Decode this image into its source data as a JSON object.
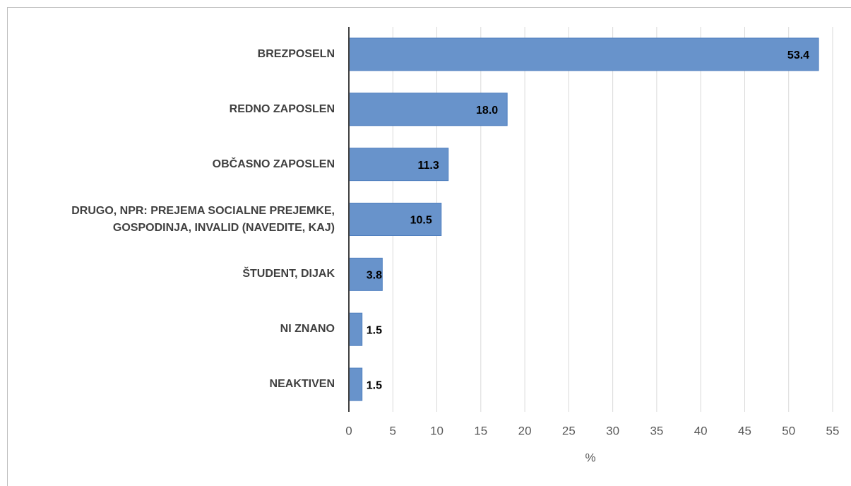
{
  "chart_data": {
    "type": "barh",
    "categories": [
      "BREZPOSELN",
      "REDNO ZAPOSLEN",
      "OBČASNO ZAPOSLEN",
      "DRUGO, NPR: PREJEMA SOCIALNE PREJEMKE, GOSPODINJA, INVALID (NAVEDITE, KAJ)",
      "ŠTUDENT, DIJAK",
      "NI ZNANO",
      "NEAKTIVEN"
    ],
    "values": [
      53.4,
      18,
      11.3,
      10.5,
      3.8,
      1.5,
      1.5
    ],
    "value_labels": [
      "53.4",
      "18.0",
      "11.3",
      "10.5",
      "3.8",
      "1.5",
      "1.5"
    ],
    "color": "#6893cb",
    "xlabel": "%",
    "xlim": [
      0,
      55
    ],
    "xticks": [
      0,
      5,
      10,
      15,
      20,
      25,
      30,
      35,
      40,
      45,
      50,
      55
    ],
    "grid": true
  }
}
